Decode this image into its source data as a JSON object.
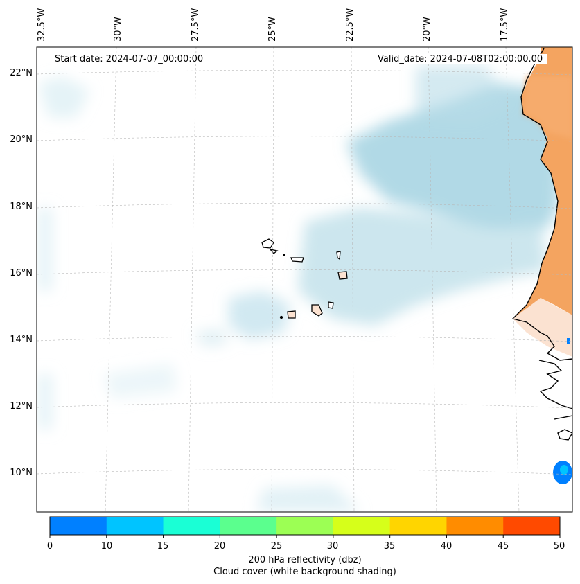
{
  "map": {
    "start_date": "Start date: 2024-07-07_00:00:00",
    "valid_date": "Valid_date: 2024-07-08T02:00:00.00",
    "longitude_labels": [
      "32.5°W",
      "30°W",
      "27.5°W",
      "25°W",
      "22.5°W",
      "20°W",
      "17.5°W"
    ],
    "latitude_labels": [
      "22°N",
      "20°N",
      "18°N",
      "16°N",
      "14°N",
      "12°N",
      "10°N"
    ],
    "cloud_color": "#add8e6",
    "land_color": "#f4a460"
  },
  "colorbar": {
    "ticks": [
      "0",
      "10",
      "15",
      "20",
      "25",
      "30",
      "35",
      "40",
      "45",
      "50"
    ],
    "colors": [
      "#0080ff",
      "#00c4ff",
      "#1affd5",
      "#5bff8e",
      "#9cff54",
      "#d6ff1a",
      "#ffd500",
      "#ff8c00",
      "#ff4a00"
    ],
    "label": "200 hPa reflectivity (dbz)",
    "sublabel": "Cloud cover (white background shading)"
  }
}
